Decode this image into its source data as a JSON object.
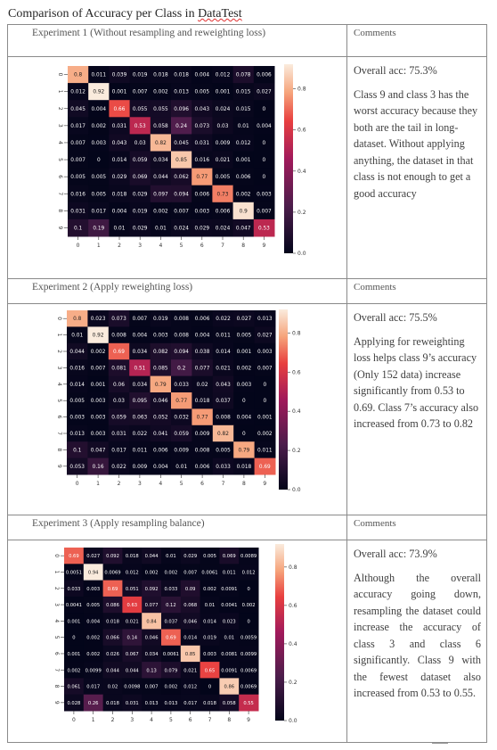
{
  "title": {
    "prefix": "Comparison of Accuracy per Class in ",
    "word": "DataTest"
  },
  "experiments": [
    {
      "label": "Experiment 1 (Without resampling and reweighting loss)",
      "comments_header": "Comments",
      "acc": "Overall acc: 75.3%",
      "comment": "Class 9 and class 3 has the worst accuracy because they both are the tail in long-dataset. Without applying anything, the dataset in that class  is not enough to get a good accuracy",
      "justify": false,
      "matrix": [
        [
          "0.8",
          "0.011",
          "0.039",
          "0.019",
          "0.018",
          "0.018",
          "0.004",
          "0.012",
          "0.078",
          "0.006"
        ],
        [
          "0.012",
          "0.92",
          "0.001",
          "0.007",
          "0.002",
          "0.013",
          "0.005",
          "0.001",
          "0.015",
          "0.027"
        ],
        [
          "0.045",
          "0.004",
          "0.66",
          "0.055",
          "0.055",
          "0.096",
          "0.043",
          "0.024",
          "0.015",
          "0"
        ],
        [
          "0.017",
          "0.002",
          "0.031",
          "0.53",
          "0.058",
          "0.24",
          "0.073",
          "0.03",
          "0.01",
          "0.004"
        ],
        [
          "0.007",
          "0.003",
          "0.043",
          "0.03",
          "0.82",
          "0.045",
          "0.031",
          "0.009",
          "0.012",
          "0"
        ],
        [
          "0.007",
          "0",
          "0.014",
          "0.059",
          "0.034",
          "0.85",
          "0.016",
          "0.021",
          "0.001",
          "0"
        ],
        [
          "0.005",
          "0.005",
          "0.029",
          "0.069",
          "0.044",
          "0.062",
          "0.77",
          "0.005",
          "0.006",
          "0"
        ],
        [
          "0.016",
          "0.005",
          "0.018",
          "0.029",
          "0.097",
          "0.094",
          "0.006",
          "0.73",
          "0.002",
          "0.003"
        ],
        [
          "0.031",
          "0.017",
          "0.004",
          "0.019",
          "0.002",
          "0.007",
          "0.003",
          "0.006",
          "0.9",
          "0.007"
        ],
        [
          "0.1",
          "0.19",
          "0.01",
          "0.029",
          "0.01",
          "0.024",
          "0.029",
          "0.024",
          "0.047",
          "0.53"
        ]
      ]
    },
    {
      "label": "Experiment 2 (Apply reweighting loss)",
      "comments_header": "Comments",
      "acc": "Overall acc: 75.5%",
      "comment": "Applying for reweighting loss helps class 9’s accuracy (Only 152 data) increase significantly from 0.53 to 0.69. Class 7’s accuracy also increased from 0.73 to 0.82",
      "justify": false,
      "matrix": [
        [
          "0.8",
          "0.023",
          "0.073",
          "0.007",
          "0.019",
          "0.008",
          "0.006",
          "0.022",
          "0.027",
          "0.013"
        ],
        [
          "0.01",
          "0.92",
          "0.008",
          "0.004",
          "0.003",
          "0.008",
          "0.004",
          "0.011",
          "0.005",
          "0.027"
        ],
        [
          "0.044",
          "0.002",
          "0.69",
          "0.034",
          "0.082",
          "0.094",
          "0.038",
          "0.014",
          "0.001",
          "0.003"
        ],
        [
          "0.016",
          "0.007",
          "0.081",
          "0.51",
          "0.085",
          "0.2",
          "0.077",
          "0.021",
          "0.002",
          "0.007"
        ],
        [
          "0.014",
          "0.001",
          "0.06",
          "0.034",
          "0.79",
          "0.033",
          "0.02",
          "0.043",
          "0.003",
          "0"
        ],
        [
          "0.005",
          "0.003",
          "0.03",
          "0.095",
          "0.046",
          "0.77",
          "0.018",
          "0.037",
          "0",
          "0"
        ],
        [
          "0.003",
          "0.003",
          "0.059",
          "0.063",
          "0.052",
          "0.032",
          "0.77",
          "0.008",
          "0.004",
          "0.001"
        ],
        [
          "0.013",
          "0.003",
          "0.031",
          "0.022",
          "0.041",
          "0.059",
          "0.009",
          "0.82",
          "0",
          "0.002"
        ],
        [
          "0.1",
          "0.047",
          "0.017",
          "0.011",
          "0.006",
          "0.009",
          "0.008",
          "0.005",
          "0.79",
          "0.011"
        ],
        [
          "0.053",
          "0.16",
          "0.022",
          "0.009",
          "0.004",
          "0.01",
          "0.006",
          "0.033",
          "0.018",
          "0.69"
        ]
      ]
    },
    {
      "label": "Experiment 3 (Apply resampling balance)",
      "comments_header": "Comments",
      "acc": "Overall acc: 73.9%",
      "comment": "Although the overall accuracy going down, resampling the dataset could increase the accuracy of class 3 and class 6 significantly. Class 9 with the fewest dataset also increased from 0.53 to 0.55.",
      "justify": true,
      "matrix": [
        [
          "0.69",
          "0.027",
          "0.092",
          "0.018",
          "0.044",
          "0.01",
          "0.029",
          "0.005",
          "0.069",
          "0.0089"
        ],
        [
          "0.0051",
          "0.94",
          "0.0069",
          "0.012",
          "0.002",
          "0.002",
          "0.007",
          "0.0061",
          "0.011",
          "0.012"
        ],
        [
          "0.033",
          "0.003",
          "0.69",
          "0.051",
          "0.092",
          "0.033",
          "0.09",
          "0.002",
          "0.0091",
          "0"
        ],
        [
          "0.0041",
          "0.005",
          "0.086",
          "0.63",
          "0.077",
          "0.12",
          "0.068",
          "0.01",
          "0.0041",
          "0.002"
        ],
        [
          "0.001",
          "0.004",
          "0.018",
          "0.021",
          "0.84",
          "0.037",
          "0.046",
          "0.014",
          "0.023",
          "0"
        ],
        [
          "0",
          "0.002",
          "0.066",
          "0.14",
          "0.046",
          "0.69",
          "0.014",
          "0.019",
          "0.01",
          "0.0059"
        ],
        [
          "0.001",
          "0.002",
          "0.026",
          "0.067",
          "0.034",
          "0.0061",
          "0.85",
          "0.003",
          "0.0081",
          "0.0099"
        ],
        [
          "0.002",
          "0.0099",
          "0.044",
          "0.044",
          "0.13",
          "0.079",
          "0.021",
          "0.65",
          "0.0091",
          "0.0069"
        ],
        [
          "0.061",
          "0.017",
          "0.02",
          "0.0098",
          "0.007",
          "0.002",
          "0.012",
          "0",
          "0.86",
          "0.0069"
        ],
        [
          "0.028",
          "0.26",
          "0.018",
          "0.031",
          "0.013",
          "0.013",
          "0.017",
          "0.018",
          "0.058",
          "0.55"
        ]
      ]
    }
  ],
  "axis_ticks": [
    "0",
    "1",
    "2",
    "3",
    "4",
    "5",
    "6",
    "7",
    "8",
    "9"
  ],
  "colorbar_ticks": [
    "0.8",
    "0.6",
    "0.4",
    "0.2",
    "0.0"
  ],
  "colors": {
    "low": "#03051a",
    "mid_low": "#4c1d4b",
    "mid": "#a11a5b",
    "mid_high": "#e83f3f",
    "high": "#f6a47b",
    "top": "#faebdd"
  }
}
